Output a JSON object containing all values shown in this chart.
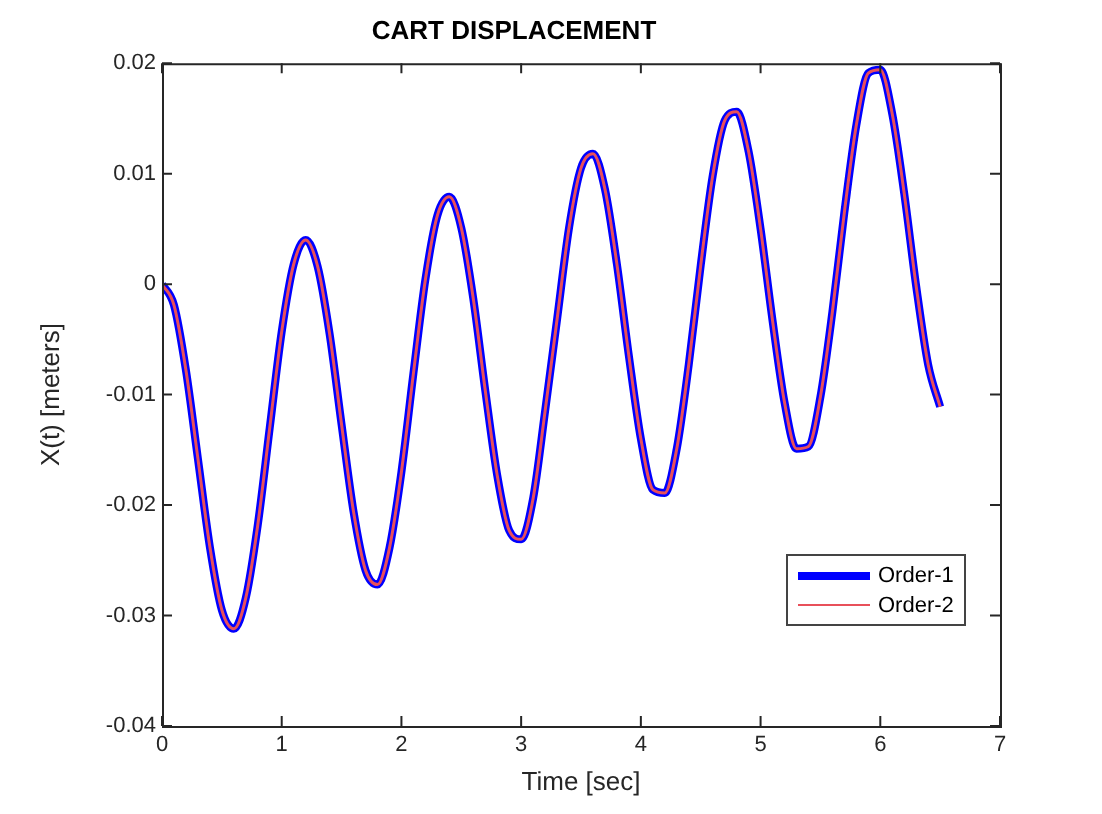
{
  "chart_data": {
    "type": "line",
    "title": "CART DISPLACEMENT",
    "xlabel": "Time [sec]",
    "ylabel": "X(t) [meters]",
    "x": [
      0,
      0.1,
      0.2,
      0.3,
      0.4,
      0.5,
      0.6,
      0.7,
      0.8,
      0.9,
      1.0,
      1.1,
      1.2,
      1.3,
      1.4,
      1.5,
      1.6,
      1.7,
      1.8,
      1.9,
      2.0,
      2.1,
      2.2,
      2.3,
      2.4,
      2.5,
      2.6,
      2.7,
      2.8,
      2.9,
      3.0,
      3.1,
      3.2,
      3.3,
      3.4,
      3.5,
      3.6,
      3.7,
      3.8,
      3.9,
      4.0,
      4.1,
      4.2,
      4.3,
      4.4,
      4.5,
      4.6,
      4.7,
      4.8,
      4.9,
      5.0,
      5.1,
      5.2,
      5.3,
      5.4,
      5.5,
      5.6,
      5.7,
      5.8,
      5.9,
      6.0,
      6.1,
      6.2,
      6.3,
      6.4,
      6.5
    ],
    "series": [
      {
        "name": "Order-1",
        "color": "#0000ff",
        "values": [
          0,
          -0.0019,
          -0.0078,
          -0.0158,
          -0.0238,
          -0.0295,
          -0.0312,
          -0.0284,
          -0.0218,
          -0.013,
          -0.0043,
          0.0018,
          0.004,
          0.0016,
          -0.0045,
          -0.0127,
          -0.0206,
          -0.0259,
          -0.0272,
          -0.0239,
          -0.017,
          -0.0081,
          0.0004,
          0.0062,
          0.0079,
          0.0051,
          -0.0013,
          -0.0096,
          -0.0173,
          -0.0223,
          -0.0231,
          -0.0194,
          -0.0115,
          -0.0032,
          0.0051,
          0.0105,
          0.0118,
          0.0086,
          0.0018,
          -0.0065,
          -0.014,
          -0.0186,
          -0.0189,
          -0.0149,
          -0.0073,
          0.0017,
          0.0098,
          0.0148,
          0.0156,
          0.012,
          0.005,
          -0.0033,
          -0.0107,
          -0.0149,
          -0.0147,
          -0.0102,
          -0.0025,
          0.0065,
          0.0144,
          0.0191,
          0.0194,
          0.0154,
          0.0082,
          -0.0002,
          -0.0073,
          -0.0111
        ]
      },
      {
        "name": "Order-2",
        "color": "#e8505a",
        "values": [
          0,
          -0.0019,
          -0.0078,
          -0.0158,
          -0.0238,
          -0.0295,
          -0.0312,
          -0.0284,
          -0.0218,
          -0.013,
          -0.0043,
          0.0018,
          0.004,
          0.0016,
          -0.0045,
          -0.0127,
          -0.0206,
          -0.0259,
          -0.0272,
          -0.0239,
          -0.017,
          -0.0081,
          0.0004,
          0.0062,
          0.0079,
          0.0051,
          -0.0013,
          -0.0096,
          -0.0173,
          -0.0223,
          -0.0231,
          -0.0194,
          -0.0115,
          -0.0032,
          0.0051,
          0.0105,
          0.0118,
          0.0086,
          0.0018,
          -0.0065,
          -0.014,
          -0.0186,
          -0.0189,
          -0.0149,
          -0.0073,
          0.0017,
          0.0098,
          0.0148,
          0.0156,
          0.012,
          0.005,
          -0.0033,
          -0.0107,
          -0.0149,
          -0.0147,
          -0.0102,
          -0.0025,
          0.0065,
          0.0144,
          0.0191,
          0.0194,
          0.0154,
          0.0082,
          -0.0002,
          -0.0073,
          -0.0111
        ]
      }
    ],
    "xlim": [
      0,
      7
    ],
    "xticks": [
      0,
      1,
      2,
      3,
      4,
      5,
      6,
      7
    ],
    "ylim": [
      -0.04,
      0.02
    ],
    "yticks": [
      -0.04,
      -0.03,
      -0.02,
      -0.01,
      0,
      0.01,
      0.02
    ],
    "grid": false,
    "legend": "bottom right",
    "marker": "none",
    "line_style": "solid"
  }
}
